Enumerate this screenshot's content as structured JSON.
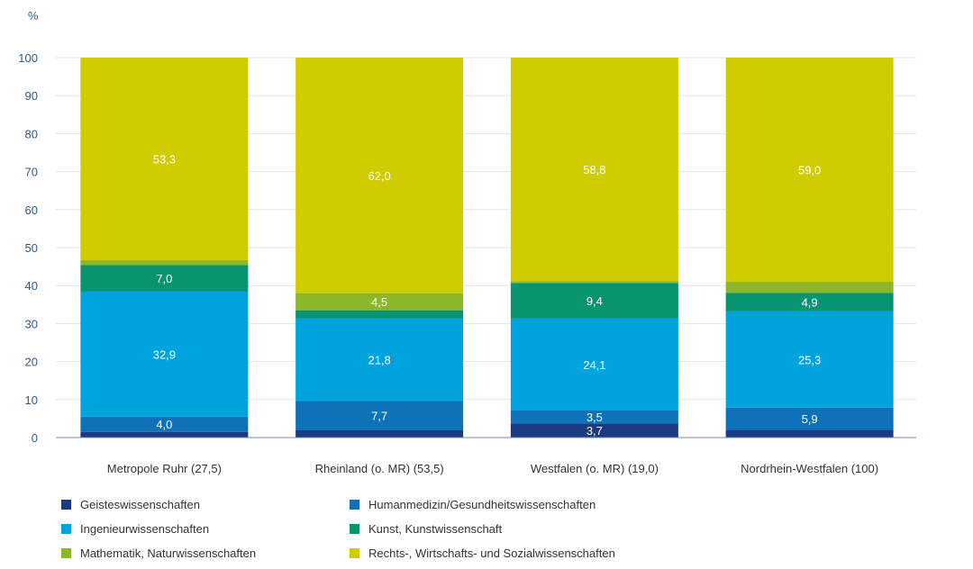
{
  "chart_data": {
    "type": "bar",
    "stacked": true,
    "unit_label": "%",
    "categories": [
      "Metropole Ruhr (27,5)",
      "Rheinland (o. MR) (53,5)",
      "Westfalen (o. MR) (19,0)",
      "Nordrhein-Westfalen (100)"
    ],
    "y_ticks": [
      "0",
      "10",
      "20",
      "30",
      "40",
      "50",
      "60",
      "70",
      "80",
      "90",
      "100"
    ],
    "ylim": [
      0,
      100
    ],
    "grid": true,
    "legend_position": "bottom",
    "series": [
      {
        "name": "Geisteswissenschaften",
        "color": "#1d3a80",
        "values": [
          1.5,
          1.9,
          3.7,
          2.0
        ],
        "labels": [
          "",
          "",
          "3,7",
          ""
        ]
      },
      {
        "name": "Humanmedizin/Gesundheitswissenschaften",
        "color": "#0d72b8",
        "values": [
          4.0,
          7.7,
          3.5,
          5.9
        ],
        "labels": [
          "4,0",
          "7,7",
          "3,5",
          "5,9"
        ]
      },
      {
        "name": "Ingenieurwissenschaften",
        "color": "#00a3dd",
        "values": [
          32.9,
          21.8,
          24.1,
          25.3
        ],
        "labels": [
          "32,9",
          "21,8",
          "24,1",
          "25,3"
        ]
      },
      {
        "name": "Kunst, Kunstwissenschaft",
        "color": "#07946f",
        "values": [
          7.0,
          2.1,
          9.4,
          4.9
        ],
        "labels": [
          "7,0",
          "",
          "9,4",
          "4,9"
        ]
      },
      {
        "name": "Mathematik, Naturwissenschaften",
        "color": "#8cb72a",
        "values": [
          1.3,
          4.5,
          0.5,
          2.9
        ],
        "labels": [
          "",
          "4,5",
          "",
          ""
        ]
      },
      {
        "name": "Rechts-, Wirtschafts- und Sozialwissenschaften",
        "color": "#cfcc00",
        "values": [
          53.3,
          62.0,
          58.8,
          59.0
        ],
        "labels": [
          "53,3",
          "62,0",
          "58,8",
          "59,0"
        ]
      }
    ]
  }
}
